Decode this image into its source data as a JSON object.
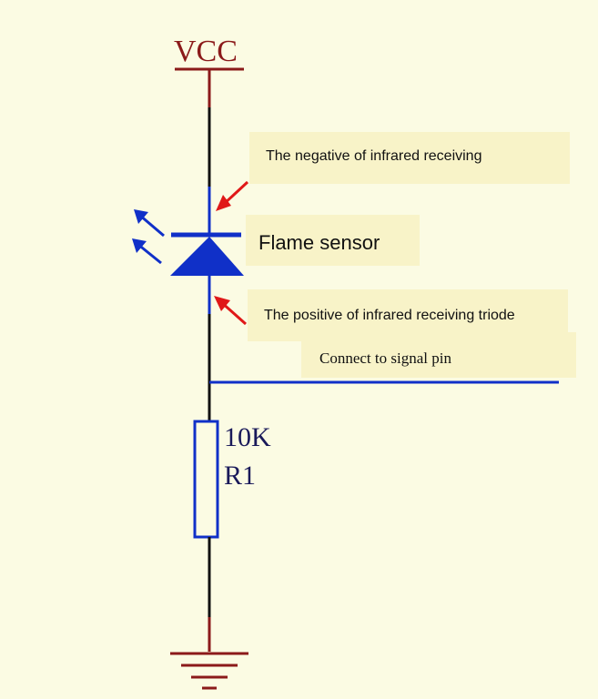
{
  "diagram": {
    "supply_label": "VCC",
    "negative_note": "The negative of infrared receiving",
    "sensor_note": "Flame sensor",
    "positive_note": "The positive of infrared receiving triode",
    "signal_note": "Connect to signal pin",
    "resistor_value": "10K",
    "resistor_designator": "R1"
  },
  "colors": {
    "background": "#fbfbe3",
    "note_fill": "#f8f3c8",
    "wire": "#111111",
    "power_wire": "#8b1a1a",
    "component": "#1030c8",
    "arrow": "#e01818",
    "text": "#111111",
    "component_label": "#1a1a5a"
  }
}
